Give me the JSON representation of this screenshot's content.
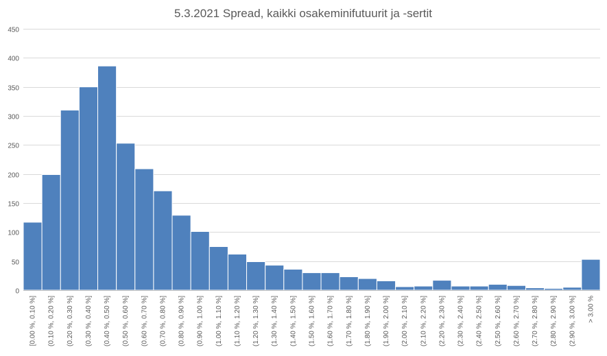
{
  "chart_data": {
    "type": "bar",
    "title": "5.3.2021 Spread, kaikki osakeminifutuurit ja -sertit",
    "xlabel": "",
    "ylabel": "",
    "ylim": [
      0,
      450
    ],
    "yticks": [
      0,
      50,
      100,
      150,
      200,
      250,
      300,
      350,
      400,
      450
    ],
    "grid": true,
    "legend": "none",
    "bar_color": "#4f81bd",
    "categories": [
      "[0.00 %, 0.10 %]",
      "(0.10 %, 0.20 %]",
      "(0.20 %, 0.30 %]",
      "(0.30 %, 0.40 %]",
      "(0.40 %, 0.50 %]",
      "(0.50 %, 0.60 %]",
      "(0.60 %, 0.70 %]",
      "(0.70 %, 0.80 %]",
      "(0.80 %, 0.90 %]",
      "(0.90 %, 1.00 %]",
      "(1.00 %, 1.10 %]",
      "(1.10 %, 1.20 %]",
      "(1.20 %, 1.30 %]",
      "(1.30 %, 1.40 %]",
      "(1.40 %, 1.50 %]",
      "(1.50 %, 1.60 %]",
      "(1.60 %, 1.70 %]",
      "(1.70 %, 1.80 %]",
      "(1.80 %, 1.90 %]",
      "(1.90 %, 2.00 %]",
      "(2.00 %, 2.10 %]",
      "(2.10 %, 2.20 %]",
      "(2.20 %, 2.30 %]",
      "(2.30 %, 2.40 %]",
      "(2.40 %, 2.50 %]",
      "(2.50 %, 2.60 %]",
      "(2.60 %, 2.70 %]",
      "(2.70 %, 2.80 %]",
      "(2.80 %, 2.90 %]",
      "(2.90 %, 3.00 %]",
      "> 3.00 %"
    ],
    "values": [
      117,
      199,
      310,
      350,
      386,
      253,
      209,
      171,
      129,
      101,
      75,
      62,
      49,
      43,
      36,
      30,
      30,
      23,
      20,
      16,
      6,
      7,
      17,
      7,
      7,
      10,
      8,
      4,
      3,
      5,
      53
    ]
  }
}
